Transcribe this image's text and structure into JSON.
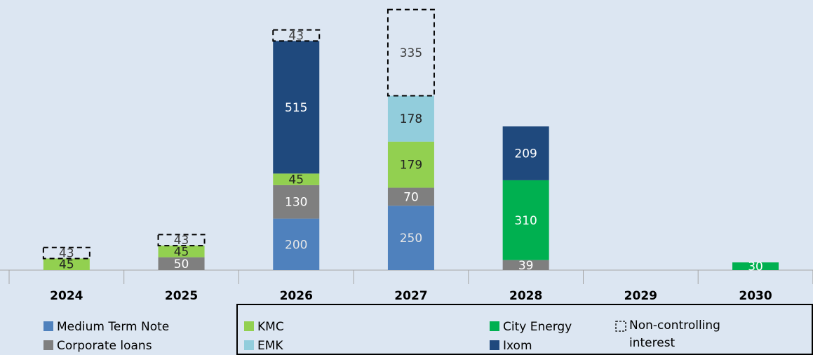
{
  "chart_data": {
    "type": "stacked_bar",
    "categories": [
      "2024",
      "2025",
      "2026",
      "2027",
      "2028",
      "2029",
      "2030"
    ],
    "series": [
      {
        "name": "Medium Term Note",
        "color": "#4f81bd",
        "values": [
          null,
          null,
          200,
          250,
          null,
          null,
          null
        ]
      },
      {
        "name": "Corporate loans",
        "color": "#7f7f7f",
        "values": [
          null,
          50,
          130,
          70,
          39,
          null,
          null
        ]
      },
      {
        "name": "City Energy",
        "color": "#00b050",
        "values": [
          null,
          null,
          null,
          null,
          310,
          null,
          30
        ]
      },
      {
        "name": "KMC",
        "color": "#92d050",
        "values": [
          45,
          45,
          45,
          179,
          null,
          null,
          null
        ]
      },
      {
        "name": "EMK",
        "color": "#92cddc",
        "values": [
          null,
          null,
          null,
          178,
          null,
          null,
          null
        ]
      },
      {
        "name": "Ixom",
        "color": "#1f497d",
        "values": [
          null,
          null,
          515,
          null,
          209,
          null,
          null
        ]
      },
      {
        "name": "Non-controlling interest",
        "color": "none",
        "dashed": true,
        "values": [
          43,
          43,
          43,
          335,
          null,
          null,
          null
        ]
      }
    ]
  }
}
